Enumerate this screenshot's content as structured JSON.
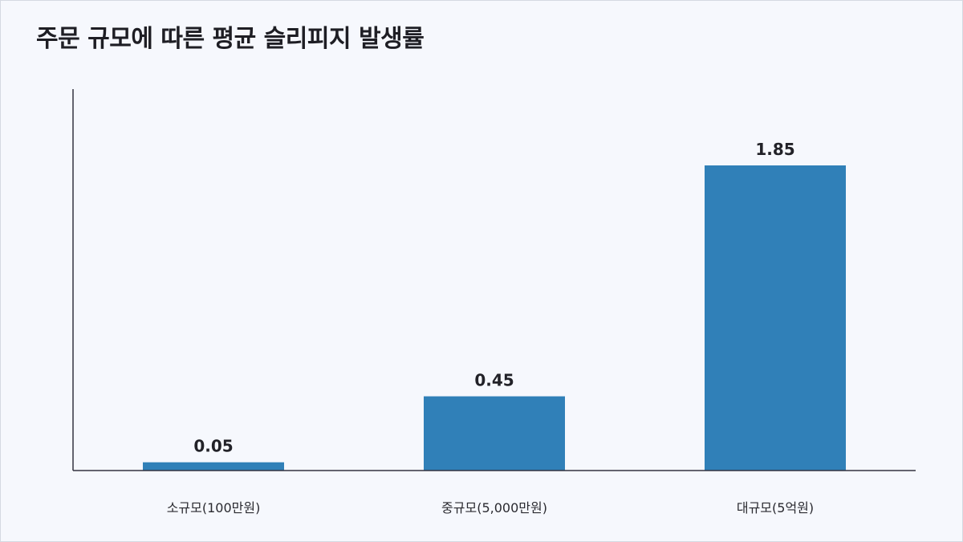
{
  "chart_data": {
    "type": "bar",
    "title": "주문 규모에 따른 평균 슬리피지 발생률",
    "xlabel": "",
    "ylabel": "",
    "categories": [
      "소규모(100만원)",
      "중규모(5,000만원)",
      "대규모(5억원)"
    ],
    "values": [
      0.05,
      0.45,
      1.85
    ],
    "value_labels": [
      "0.05",
      "0.45",
      "1.85"
    ],
    "ylim": [
      0,
      2.0
    ],
    "grid": false,
    "legend": "none",
    "bar_color": "#3080b8",
    "axis_color": "#333340"
  }
}
